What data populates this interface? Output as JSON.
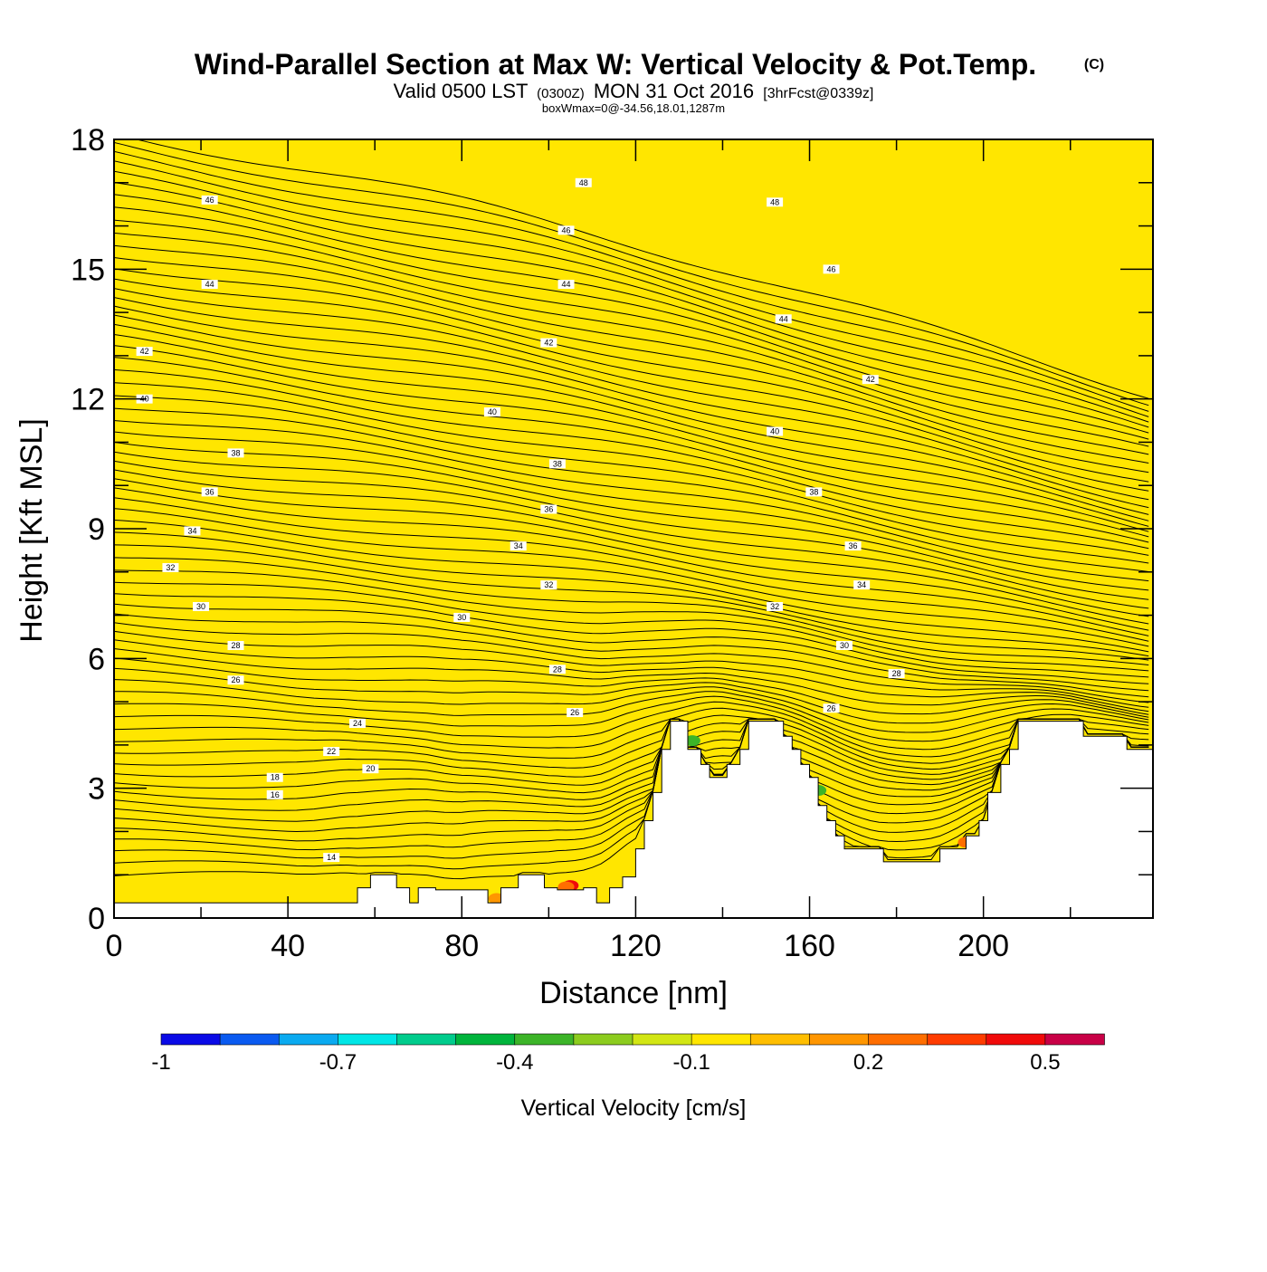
{
  "chart_data": {
    "type": "heatmap",
    "title": {
      "main": "Wind-Parallel Section at Max W: Vertical Velocity & Pot.Temp.",
      "copyright": "(C)",
      "valid_prefix": "Valid 0500 LST",
      "valid_zulu": "(0300Z)",
      "valid_date": "MON 31 Oct 2016",
      "forecast": "[3hrFcst@0339z]",
      "box_info": "boxWmax=0@-34.56,18.01,1287m"
    },
    "xlabel": "Distance [nm]",
    "ylabel": "Height [Kft MSL]",
    "xlim": [
      0,
      239
    ],
    "ylim": [
      0,
      18
    ],
    "x_ticks": [
      0,
      40,
      80,
      120,
      160,
      200
    ],
    "x_tick_labels": [
      "0",
      "40",
      "80",
      "120",
      "160",
      "200"
    ],
    "y_ticks": [
      0,
      3,
      6,
      9,
      12,
      15,
      18
    ],
    "y_tick_labels": [
      "0",
      "3",
      "6",
      "9",
      "12",
      "15",
      "18"
    ],
    "fill_color": "#FFE600",
    "terrain": [
      [
        0,
        0.35
      ],
      [
        40,
        0.35
      ],
      [
        56,
        0.35
      ],
      [
        56,
        0.7
      ],
      [
        59,
        0.7
      ],
      [
        59,
        1.0
      ],
      [
        65,
        1.0
      ],
      [
        65,
        0.7
      ],
      [
        68,
        0.7
      ],
      [
        68,
        0.35
      ],
      [
        70,
        0.35
      ],
      [
        70,
        0.7
      ],
      [
        74,
        0.7
      ],
      [
        74,
        0.65
      ],
      [
        86,
        0.65
      ],
      [
        86,
        0.35
      ],
      [
        89,
        0.35
      ],
      [
        89,
        0.7
      ],
      [
        93,
        0.7
      ],
      [
        93,
        1.0
      ],
      [
        99,
        1.0
      ],
      [
        99,
        0.7
      ],
      [
        102,
        0.7
      ],
      [
        102,
        0.65
      ],
      [
        108,
        0.65
      ],
      [
        108,
        0.7
      ],
      [
        111,
        0.7
      ],
      [
        111,
        0.35
      ],
      [
        114,
        0.35
      ],
      [
        114,
        0.7
      ],
      [
        117,
        0.7
      ],
      [
        117,
        0.95
      ],
      [
        120,
        0.95
      ],
      [
        120,
        1.6
      ],
      [
        122,
        1.6
      ],
      [
        122,
        2.25
      ],
      [
        124,
        2.25
      ],
      [
        124,
        2.9
      ],
      [
        126,
        2.9
      ],
      [
        126,
        3.9
      ],
      [
        128,
        3.9
      ],
      [
        128,
        4.55
      ],
      [
        132,
        4.55
      ],
      [
        132,
        3.9
      ],
      [
        135,
        3.9
      ],
      [
        135,
        3.55
      ],
      [
        137,
        3.55
      ],
      [
        137,
        3.25
      ],
      [
        141,
        3.25
      ],
      [
        141,
        3.55
      ],
      [
        144,
        3.55
      ],
      [
        144,
        3.9
      ],
      [
        146,
        3.9
      ],
      [
        146,
        4.55
      ],
      [
        154,
        4.55
      ],
      [
        154,
        4.2
      ],
      [
        156,
        4.2
      ],
      [
        156,
        3.9
      ],
      [
        158,
        3.9
      ],
      [
        158,
        3.55
      ],
      [
        160,
        3.55
      ],
      [
        160,
        3.25
      ],
      [
        162,
        3.25
      ],
      [
        162,
        2.6
      ],
      [
        164,
        2.6
      ],
      [
        164,
        2.25
      ],
      [
        166,
        2.25
      ],
      [
        166,
        1.9
      ],
      [
        168,
        1.9
      ],
      [
        168,
        1.6
      ],
      [
        177,
        1.6
      ],
      [
        177,
        1.3
      ],
      [
        190,
        1.3
      ],
      [
        190,
        1.6
      ],
      [
        196,
        1.6
      ],
      [
        196,
        1.9
      ],
      [
        199,
        1.9
      ],
      [
        199,
        2.25
      ],
      [
        201,
        2.25
      ],
      [
        201,
        2.9
      ],
      [
        204,
        2.9
      ],
      [
        204,
        3.55
      ],
      [
        206,
        3.55
      ],
      [
        206,
        3.9
      ],
      [
        208,
        3.9
      ],
      [
        208,
        4.55
      ],
      [
        223,
        4.55
      ],
      [
        223,
        4.2
      ],
      [
        233,
        4.2
      ],
      [
        233,
        3.9
      ],
      [
        239,
        3.9
      ]
    ],
    "theta_labels": [
      {
        "x": 22,
        "y": 16.6,
        "text": "46"
      },
      {
        "x": 108,
        "y": 17.0,
        "text": "48"
      },
      {
        "x": 152,
        "y": 16.55,
        "text": "48"
      },
      {
        "x": 104,
        "y": 15.9,
        "text": "46"
      },
      {
        "x": 165,
        "y": 15.0,
        "text": "46"
      },
      {
        "x": 22,
        "y": 14.65,
        "text": "44"
      },
      {
        "x": 104,
        "y": 14.65,
        "text": "44"
      },
      {
        "x": 154,
        "y": 13.85,
        "text": "44"
      },
      {
        "x": 7,
        "y": 13.1,
        "text": "42"
      },
      {
        "x": 100,
        "y": 13.3,
        "text": "42"
      },
      {
        "x": 174,
        "y": 12.45,
        "text": "42"
      },
      {
        "x": 7,
        "y": 12.0,
        "text": "40"
      },
      {
        "x": 87,
        "y": 11.7,
        "text": "40"
      },
      {
        "x": 152,
        "y": 11.25,
        "text": "40"
      },
      {
        "x": 28,
        "y": 10.75,
        "text": "38"
      },
      {
        "x": 102,
        "y": 10.5,
        "text": "38"
      },
      {
        "x": 161,
        "y": 9.85,
        "text": "38"
      },
      {
        "x": 22,
        "y": 9.85,
        "text": "36"
      },
      {
        "x": 100,
        "y": 9.45,
        "text": "36"
      },
      {
        "x": 170,
        "y": 8.6,
        "text": "36"
      },
      {
        "x": 18,
        "y": 8.95,
        "text": "34"
      },
      {
        "x": 93,
        "y": 8.6,
        "text": "34"
      },
      {
        "x": 172,
        "y": 7.7,
        "text": "34"
      },
      {
        "x": 13,
        "y": 8.1,
        "text": "32"
      },
      {
        "x": 100,
        "y": 7.7,
        "text": "32"
      },
      {
        "x": 152,
        "y": 7.2,
        "text": "32"
      },
      {
        "x": 20,
        "y": 7.2,
        "text": "30"
      },
      {
        "x": 80,
        "y": 6.95,
        "text": "30"
      },
      {
        "x": 168,
        "y": 6.3,
        "text": "30"
      },
      {
        "x": 28,
        "y": 6.3,
        "text": "28"
      },
      {
        "x": 102,
        "y": 5.75,
        "text": "28"
      },
      {
        "x": 180,
        "y": 5.65,
        "text": "28"
      },
      {
        "x": 28,
        "y": 5.5,
        "text": "26"
      },
      {
        "x": 106,
        "y": 4.75,
        "text": "26"
      },
      {
        "x": 165,
        "y": 4.85,
        "text": "26"
      },
      {
        "x": 56,
        "y": 4.5,
        "text": "24"
      },
      {
        "x": 50,
        "y": 3.85,
        "text": "22"
      },
      {
        "x": 59,
        "y": 3.45,
        "text": "20"
      },
      {
        "x": 37,
        "y": 3.25,
        "text": "18"
      },
      {
        "x": 37,
        "y": 2.85,
        "text": "16"
      },
      {
        "x": 50,
        "y": 1.4,
        "text": "14"
      }
    ],
    "colorbar": {
      "label": "Vertical Velocity [cm/s]",
      "tick_labels": [
        "-1",
        "-0.7",
        "-0.4",
        "-0.1",
        "0.2",
        "0.5"
      ],
      "colors": [
        "#0A0AE6",
        "#0A5AF0",
        "#0AAAF0",
        "#00E6E6",
        "#00CC8C",
        "#00B43C",
        "#3CB428",
        "#8CCC1E",
        "#D2E614",
        "#FFE600",
        "#FFBE00",
        "#FF9600",
        "#FF6E00",
        "#FF3C00",
        "#F00A0A",
        "#C80046"
      ]
    }
  }
}
